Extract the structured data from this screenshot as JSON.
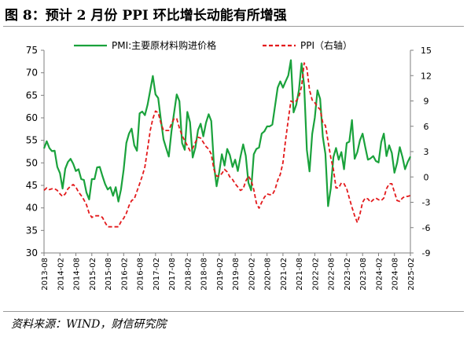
{
  "title": "图 8：预计 2 月份 PPI 环比增长动能有所增强",
  "source": "资料来源：WIND，财信研究院",
  "colors": {
    "pmi": "#1aa23c",
    "ppi": "#e31a1c",
    "axis": "#7f7f7f"
  },
  "chart_data": {
    "type": "line",
    "x_tick_labels": [
      "2013-08",
      "2014-02",
      "2014-08",
      "2015-02",
      "2015-08",
      "2016-02",
      "2016-08",
      "2017-02",
      "2017-08",
      "2018-02",
      "2018-08",
      "2019-02",
      "2019-08",
      "2020-02",
      "2020-08",
      "2021-02",
      "2021-08",
      "2022-02",
      "2022-08",
      "2023-02",
      "2023-08",
      "2024-02",
      "2024-08",
      "2025-02"
    ],
    "y_left": {
      "min": 30,
      "max": 75,
      "ticks": [
        "30",
        "35",
        "40",
        "45",
        "50",
        "55",
        "60",
        "65",
        "70",
        "75"
      ]
    },
    "y_right": {
      "min": -9,
      "max": 15,
      "ticks": [
        "-9",
        "-6",
        "-3",
        "0",
        "3",
        "6",
        "9",
        "12",
        "15"
      ]
    },
    "legend": {
      "position": "top",
      "entries": [
        "PMI:主要原材料购进价格",
        "PPI（右轴）"
      ]
    },
    "grid": false,
    "series": [
      {
        "name": "PMI:主要原材料购进价格",
        "axis": "left",
        "style": "solid",
        "x": [
          "2013-08",
          "2013-09",
          "2013-10",
          "2013-11",
          "2013-12",
          "2014-01",
          "2014-02",
          "2014-03",
          "2014-04",
          "2014-05",
          "2014-06",
          "2014-07",
          "2014-08",
          "2014-09",
          "2014-10",
          "2014-11",
          "2014-12",
          "2015-01",
          "2015-02",
          "2015-03",
          "2015-04",
          "2015-05",
          "2015-06",
          "2015-07",
          "2015-08",
          "2015-09",
          "2015-10",
          "2015-11",
          "2015-12",
          "2016-01",
          "2016-02",
          "2016-03",
          "2016-04",
          "2016-05",
          "2016-06",
          "2016-07",
          "2016-08",
          "2016-09",
          "2016-10",
          "2016-11",
          "2016-12",
          "2017-01",
          "2017-02",
          "2017-03",
          "2017-04",
          "2017-05",
          "2017-06",
          "2017-07",
          "2017-08",
          "2017-09",
          "2017-10",
          "2017-11",
          "2017-12",
          "2018-01",
          "2018-02",
          "2018-03",
          "2018-04",
          "2018-05",
          "2018-06",
          "2018-07",
          "2018-08",
          "2018-09",
          "2018-10",
          "2018-11",
          "2018-12",
          "2019-01",
          "2019-02",
          "2019-03",
          "2019-04",
          "2019-05",
          "2019-06",
          "2019-07",
          "2019-08",
          "2019-09",
          "2019-10",
          "2019-11",
          "2019-12",
          "2020-01",
          "2020-02",
          "2020-03",
          "2020-04",
          "2020-05",
          "2020-06",
          "2020-07",
          "2020-08",
          "2020-09",
          "2020-10",
          "2020-11",
          "2020-12",
          "2021-01",
          "2021-02",
          "2021-03",
          "2021-04",
          "2021-05",
          "2021-06",
          "2021-07",
          "2021-08",
          "2021-09",
          "2021-10",
          "2021-11",
          "2021-12",
          "2022-01",
          "2022-02",
          "2022-03",
          "2022-04",
          "2022-05",
          "2022-06",
          "2022-07",
          "2022-08",
          "2022-09",
          "2022-10",
          "2022-11",
          "2022-12",
          "2023-01",
          "2023-02",
          "2023-03",
          "2023-04",
          "2023-05",
          "2023-06",
          "2023-07",
          "2023-08",
          "2023-09",
          "2023-10",
          "2023-11",
          "2023-12",
          "2024-01",
          "2024-02",
          "2024-03",
          "2024-04",
          "2024-05",
          "2024-06",
          "2024-07",
          "2024-08",
          "2024-09",
          "2024-10",
          "2024-11",
          "2024-12",
          "2025-01",
          "2025-02"
        ],
        "values": [
          53.2,
          54.8,
          53.3,
          52.6,
          52.7,
          49.1,
          47.7,
          44.3,
          48.7,
          50.2,
          50.9,
          49.8,
          48.2,
          48.6,
          46.4,
          46.2,
          43.4,
          41.9,
          46.4,
          46.4,
          49.0,
          49.1,
          47.1,
          45.3,
          44.1,
          44.6,
          42.7,
          44.6,
          41.4,
          44.1,
          48.5,
          54.4,
          56.5,
          57.6,
          53.9,
          52.7,
          61.0,
          61.4,
          60.6,
          62.9,
          66.1,
          69.3,
          65.2,
          64.4,
          59.6,
          55.2,
          53.3,
          51.4,
          57.0,
          61.2,
          65.2,
          63.7,
          54.4,
          52.9,
          61.3,
          59.0,
          51.2,
          53.4,
          57.3,
          58.7,
          55.9,
          58.9,
          60.8,
          59.3,
          49.6,
          44.8,
          48.0,
          51.9,
          49.4,
          53.1,
          51.7,
          49.1,
          50.7,
          48.2,
          51.4,
          54.1,
          51.6,
          45.6,
          43.9,
          51.9,
          53.1,
          53.4,
          56.5,
          57.0,
          58.1,
          58.1,
          58.5,
          62.6,
          66.7,
          68.1,
          66.7,
          68.1,
          69.4,
          72.8,
          61.2,
          62.9,
          66.1,
          72.1,
          67.1,
          52.9,
          48.1,
          56.4,
          60.0,
          66.1,
          64.2,
          55.8,
          52.0,
          40.4,
          44.3,
          51.3,
          53.3,
          50.7,
          52.4,
          48.6,
          54.4,
          54.7,
          59.5,
          50.9,
          52.4,
          55.0,
          56.5,
          53.5,
          50.7,
          51.0,
          51.5,
          50.4,
          50.1,
          54.6,
          56.5,
          51.5,
          53.9,
          52.2,
          47.8,
          50.0,
          53.5,
          51.3,
          48.6,
          50.2,
          51.4
        ]
      },
      {
        "name": "PPI（右轴）",
        "axis": "right",
        "style": "dashed",
        "x": [
          "2013-08",
          "2013-09",
          "2013-10",
          "2013-11",
          "2013-12",
          "2014-01",
          "2014-02",
          "2014-03",
          "2014-04",
          "2014-05",
          "2014-06",
          "2014-07",
          "2014-08",
          "2014-09",
          "2014-10",
          "2014-11",
          "2014-12",
          "2015-01",
          "2015-02",
          "2015-03",
          "2015-04",
          "2015-05",
          "2015-06",
          "2015-07",
          "2015-08",
          "2015-09",
          "2015-10",
          "2015-11",
          "2015-12",
          "2016-01",
          "2016-02",
          "2016-03",
          "2016-04",
          "2016-05",
          "2016-06",
          "2016-07",
          "2016-08",
          "2016-09",
          "2016-10",
          "2016-11",
          "2016-12",
          "2017-01",
          "2017-02",
          "2017-03",
          "2017-04",
          "2017-05",
          "2017-06",
          "2017-07",
          "2017-08",
          "2017-09",
          "2017-10",
          "2017-11",
          "2017-12",
          "2018-01",
          "2018-02",
          "2018-03",
          "2018-04",
          "2018-05",
          "2018-06",
          "2018-07",
          "2018-08",
          "2018-09",
          "2018-10",
          "2018-11",
          "2018-12",
          "2019-01",
          "2019-02",
          "2019-03",
          "2019-04",
          "2019-05",
          "2019-06",
          "2019-07",
          "2019-08",
          "2019-09",
          "2019-10",
          "2019-11",
          "2019-12",
          "2020-01",
          "2020-02",
          "2020-03",
          "2020-04",
          "2020-05",
          "2020-06",
          "2020-07",
          "2020-08",
          "2020-09",
          "2020-10",
          "2020-11",
          "2020-12",
          "2021-01",
          "2021-02",
          "2021-03",
          "2021-04",
          "2021-05",
          "2021-06",
          "2021-07",
          "2021-08",
          "2021-09",
          "2021-10",
          "2021-11",
          "2021-12",
          "2022-01",
          "2022-02",
          "2022-03",
          "2022-04",
          "2022-05",
          "2022-06",
          "2022-07",
          "2022-08",
          "2022-09",
          "2022-10",
          "2022-11",
          "2022-12",
          "2023-01",
          "2023-02",
          "2023-03",
          "2023-04",
          "2023-05",
          "2023-06",
          "2023-07",
          "2023-08",
          "2023-09",
          "2023-10",
          "2023-11",
          "2023-12",
          "2024-01",
          "2024-02",
          "2024-03",
          "2024-04",
          "2024-05",
          "2024-06",
          "2024-07",
          "2024-08",
          "2024-09",
          "2024-10",
          "2024-11",
          "2024-12",
          "2025-01",
          "2025-02"
        ],
        "values": [
          -1.6,
          -1.3,
          -1.5,
          -1.4,
          -1.4,
          -1.6,
          -2.0,
          -2.3,
          -2.0,
          -1.4,
          -1.1,
          -0.9,
          -1.2,
          -1.8,
          -2.2,
          -2.7,
          -3.3,
          -4.3,
          -4.8,
          -4.6,
          -4.6,
          -4.6,
          -4.8,
          -5.4,
          -5.9,
          -5.9,
          -5.9,
          -5.9,
          -5.9,
          -5.3,
          -4.9,
          -4.3,
          -3.4,
          -2.8,
          -2.6,
          -1.7,
          -0.8,
          0.1,
          1.2,
          3.3,
          5.5,
          6.9,
          7.8,
          7.6,
          6.4,
          5.5,
          5.5,
          5.5,
          6.3,
          6.9,
          6.9,
          5.8,
          4.9,
          4.3,
          3.7,
          3.1,
          3.4,
          4.1,
          4.7,
          4.6,
          4.1,
          3.6,
          3.3,
          2.7,
          0.9,
          0.1,
          0.1,
          0.4,
          0.9,
          0.6,
          0.0,
          -0.3,
          -0.8,
          -1.2,
          -1.6,
          -1.4,
          -0.5,
          0.1,
          -0.4,
          -1.5,
          -3.1,
          -3.7,
          -3.0,
          -2.4,
          -2.0,
          -2.1,
          -2.1,
          -1.5,
          -0.4,
          0.3,
          1.7,
          4.4,
          6.8,
          9.0,
          8.8,
          9.0,
          9.5,
          10.7,
          13.5,
          12.9,
          10.3,
          9.1,
          8.8,
          8.3,
          8.0,
          6.4,
          6.1,
          4.2,
          2.3,
          0.9,
          -1.3,
          -1.3,
          -0.7,
          -0.8,
          -1.4,
          -2.5,
          -3.6,
          -4.6,
          -5.4,
          -4.4,
          -3.0,
          -2.5,
          -2.6,
          -3.0,
          -2.7,
          -2.5,
          -2.7,
          -2.8,
          -2.5,
          -1.4,
          -0.8,
          -0.8,
          -1.8,
          -2.8,
          -2.9,
          -2.5,
          -2.3,
          -2.3,
          -2.2
        ]
      }
    ]
  }
}
